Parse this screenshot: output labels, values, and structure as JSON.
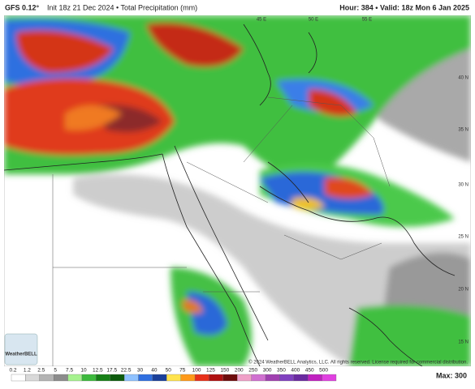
{
  "header": {
    "model": "GFS 0.12°",
    "init": "Init 18z 21 Dec 2024 • Total Precipitation (mm)",
    "hour": "Hour: 384 • Valid: 18z Mon 6 Jan 2025"
  },
  "map": {
    "lon_labels": [
      "45 E",
      "50 E",
      "55 E"
    ],
    "lat_labels": [
      "40 N",
      "35 N",
      "30 N",
      "25 N",
      "20 N",
      "15 N"
    ],
    "logo": "WeatherBELL",
    "copyright": "© 2024 WeatherBELL Analytics, LLC. All rights reserved. License required for commercial distribution."
  },
  "colorbar": {
    "labels": [
      0.2,
      1.2,
      2.5,
      5,
      7.5,
      10,
      12.5,
      17.5,
      22.5,
      30,
      40,
      50,
      75,
      100,
      125,
      150,
      200,
      250,
      300,
      350,
      400,
      450,
      500
    ],
    "max": "Max: 300"
  }
}
